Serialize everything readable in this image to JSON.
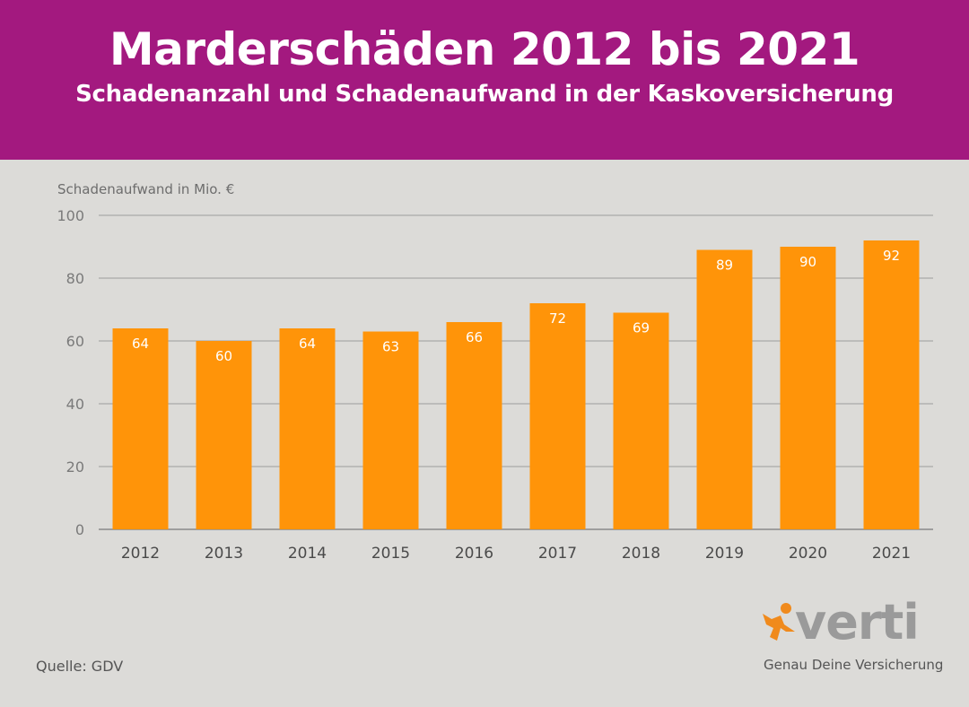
{
  "header": {
    "title": "Marderschäden 2012 bis 2021",
    "subtitle": "Schadenanzahl und Schadenaufwand in der Kaskoversicherung"
  },
  "footer": {
    "source": "Quelle: GDV"
  },
  "brand": {
    "name": "verti",
    "tagline": "Genau Deine Versicherung",
    "icon": "person-star-icon",
    "icon_color": "#f08a1c"
  },
  "colors": {
    "header_bg": "#a3197f",
    "bar": "#ff9409",
    "background": "#dcdbd8"
  },
  "chart_data": {
    "type": "bar",
    "title": "Marderschäden 2012 bis 2021",
    "subtitle": "Schadenanzahl und Schadenaufwand in der Kaskoversicherung",
    "ylabel": "Schadenaufwand in Mio. €",
    "xlabel": "",
    "categories": [
      "2012",
      "2013",
      "2014",
      "2015",
      "2016",
      "2017",
      "2018",
      "2019",
      "2020",
      "2021"
    ],
    "values": [
      64,
      60,
      64,
      63,
      66,
      72,
      69,
      89,
      90,
      92
    ],
    "ylim": [
      0,
      100
    ],
    "yticks": [
      0,
      20,
      40,
      60,
      80,
      100
    ],
    "grid": true,
    "data_labels": true
  }
}
